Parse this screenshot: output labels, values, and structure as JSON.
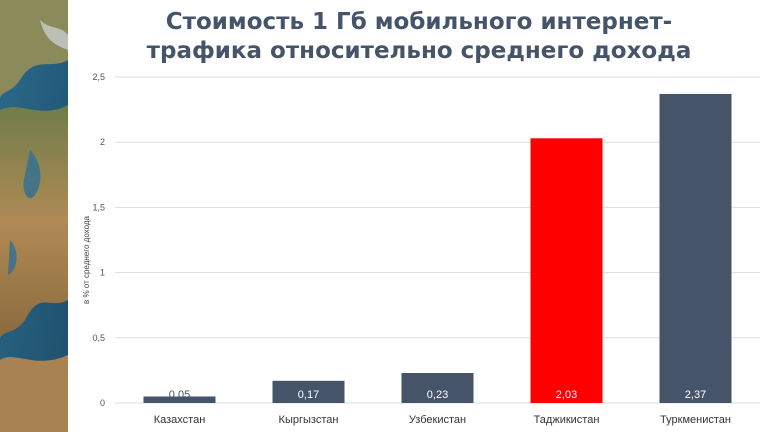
{
  "chart_data": {
    "type": "bar",
    "title_lines": [
      "Стоимость 1 Гб мобильного интернет-",
      "трафика относительно среднего дохода"
    ],
    "ylabel": "в % от среднего дохода",
    "xlabel": "",
    "categories": [
      "Казахстан",
      "Кыргызстан",
      "Узбекистан",
      "Таджикистан",
      "Туркменистан"
    ],
    "values": [
      0.05,
      0.17,
      0.23,
      2.03,
      2.37
    ],
    "value_labels": [
      "0,05",
      "0,17",
      "0,23",
      "2,03",
      "2,37"
    ],
    "ylim": [
      0,
      2.5
    ],
    "yticks": [
      0,
      0.5,
      1,
      1.5,
      2,
      2.5
    ],
    "ytick_labels": [
      "0",
      "0,5",
      "1",
      "1,5",
      "2",
      "2,5"
    ],
    "grid": true,
    "legend": "none",
    "colors": {
      "bar_default": "#46546a",
      "bar_highlight": "#ff0000",
      "highlight_category": "Таджикистан",
      "title": "#46546a"
    }
  },
  "side_image": {
    "icon": "earth-relief-map-image"
  }
}
